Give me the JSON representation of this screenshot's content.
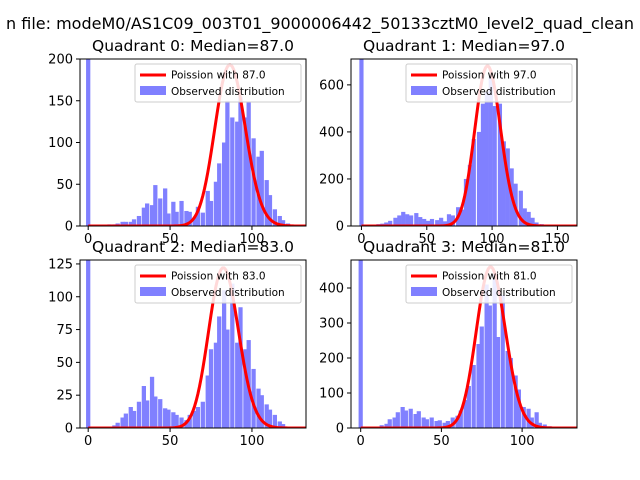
{
  "figure": {
    "suptitle": "n file: modeM0/AS1C09_003T01_9000006442_50133cztM0_level2_quad_clean"
  },
  "colors": {
    "histogram": "#8080ff",
    "poisson_line": "#ff0000",
    "axis": "#000000",
    "legend_border": "#cccccc"
  },
  "chart_data": [
    {
      "type": "bar",
      "quadrant": 0,
      "title": "Quadrant 0: Median=87.0",
      "xlabel": "",
      "ylabel": "",
      "xlim": [
        -5,
        133
      ],
      "ylim": [
        0,
        200
      ],
      "xticks": [
        0,
        50,
        100
      ],
      "xtick_labels": [
        "0",
        "50",
        "100"
      ],
      "yticks": [
        0,
        50,
        100,
        150,
        200
      ],
      "ytick_labels": [
        "0",
        "50",
        "100",
        "150",
        "200"
      ],
      "legend": {
        "position": "top-right",
        "entries": [
          "Poission with 87.0",
          "Observed distribution"
        ]
      },
      "poisson_mean": 87.0,
      "poisson_peak": 193,
      "bin_width": 2.6,
      "bins": [
        {
          "x": 0,
          "v": 200
        },
        {
          "x": 10,
          "v": 1
        },
        {
          "x": 13,
          "v": 2
        },
        {
          "x": 16,
          "v": 2
        },
        {
          "x": 18,
          "v": 3
        },
        {
          "x": 21,
          "v": 5
        },
        {
          "x": 23,
          "v": 5
        },
        {
          "x": 26,
          "v": 5
        },
        {
          "x": 28,
          "v": 8
        },
        {
          "x": 31,
          "v": 12
        },
        {
          "x": 34,
          "v": 22
        },
        {
          "x": 36,
          "v": 27
        },
        {
          "x": 39,
          "v": 25
        },
        {
          "x": 41,
          "v": 49
        },
        {
          "x": 44,
          "v": 33
        },
        {
          "x": 47,
          "v": 45
        },
        {
          "x": 49,
          "v": 15
        },
        {
          "x": 52,
          "v": 29
        },
        {
          "x": 54,
          "v": 17
        },
        {
          "x": 57,
          "v": 30
        },
        {
          "x": 60,
          "v": 18
        },
        {
          "x": 62,
          "v": 17
        },
        {
          "x": 65,
          "v": 10
        },
        {
          "x": 67,
          "v": 23
        },
        {
          "x": 70,
          "v": 16
        },
        {
          "x": 73,
          "v": 42
        },
        {
          "x": 75,
          "v": 30
        },
        {
          "x": 78,
          "v": 53
        },
        {
          "x": 80,
          "v": 75
        },
        {
          "x": 83,
          "v": 100
        },
        {
          "x": 85,
          "v": 150
        },
        {
          "x": 88,
          "v": 130
        },
        {
          "x": 91,
          "v": 125
        },
        {
          "x": 93,
          "v": 155
        },
        {
          "x": 96,
          "v": 130
        },
        {
          "x": 98,
          "v": 148
        },
        {
          "x": 101,
          "v": 105
        },
        {
          "x": 104,
          "v": 83
        },
        {
          "x": 106,
          "v": 90
        },
        {
          "x": 109,
          "v": 55
        },
        {
          "x": 111,
          "v": 37
        },
        {
          "x": 114,
          "v": 20
        },
        {
          "x": 117,
          "v": 12
        },
        {
          "x": 119,
          "v": 7
        },
        {
          "x": 122,
          "v": 3
        },
        {
          "x": 125,
          "v": 1
        }
      ]
    },
    {
      "type": "bar",
      "quadrant": 1,
      "title": "Quadrant 1: Median=97.0",
      "xlabel": "",
      "ylabel": "",
      "xlim": [
        -8,
        165
      ],
      "ylim": [
        0,
        710
      ],
      "xticks": [
        0,
        50,
        100,
        150
      ],
      "xtick_labels": [
        "0",
        "50",
        "100",
        "150"
      ],
      "yticks": [
        0,
        200,
        400,
        600
      ],
      "ytick_labels": [
        "0",
        "200",
        "400",
        "600"
      ],
      "legend": {
        "position": "top-right",
        "entries": [
          "Poission with 97.0",
          "Observed distribution"
        ]
      },
      "poisson_mean": 97.0,
      "poisson_peak": 680,
      "bin_width": 3.2,
      "bins": [
        {
          "x": 0,
          "v": 710
        },
        {
          "x": 10,
          "v": 3
        },
        {
          "x": 13,
          "v": 8
        },
        {
          "x": 16,
          "v": 10
        },
        {
          "x": 19,
          "v": 15
        },
        {
          "x": 22,
          "v": 22
        },
        {
          "x": 26,
          "v": 35
        },
        {
          "x": 29,
          "v": 45
        },
        {
          "x": 32,
          "v": 60
        },
        {
          "x": 35,
          "v": 50
        },
        {
          "x": 38,
          "v": 45
        },
        {
          "x": 42,
          "v": 55
        },
        {
          "x": 45,
          "v": 38
        },
        {
          "x": 48,
          "v": 30
        },
        {
          "x": 51,
          "v": 22
        },
        {
          "x": 54,
          "v": 30
        },
        {
          "x": 58,
          "v": 25
        },
        {
          "x": 61,
          "v": 35
        },
        {
          "x": 64,
          "v": 20
        },
        {
          "x": 67,
          "v": 50
        },
        {
          "x": 70,
          "v": 45
        },
        {
          "x": 74,
          "v": 80
        },
        {
          "x": 77,
          "v": 70
        },
        {
          "x": 80,
          "v": 200
        },
        {
          "x": 83,
          "v": 260
        },
        {
          "x": 86,
          "v": 370
        },
        {
          "x": 90,
          "v": 400
        },
        {
          "x": 93,
          "v": 520
        },
        {
          "x": 96,
          "v": 570
        },
        {
          "x": 99,
          "v": 640
        },
        {
          "x": 102,
          "v": 510
        },
        {
          "x": 106,
          "v": 520
        },
        {
          "x": 109,
          "v": 360
        },
        {
          "x": 112,
          "v": 330
        },
        {
          "x": 115,
          "v": 245
        },
        {
          "x": 118,
          "v": 180
        },
        {
          "x": 122,
          "v": 150
        },
        {
          "x": 125,
          "v": 75
        },
        {
          "x": 128,
          "v": 60
        },
        {
          "x": 131,
          "v": 35
        },
        {
          "x": 134,
          "v": 15
        },
        {
          "x": 138,
          "v": 8
        },
        {
          "x": 141,
          "v": 5
        },
        {
          "x": 144,
          "v": 3
        },
        {
          "x": 150,
          "v": 2
        }
      ]
    },
    {
      "type": "bar",
      "quadrant": 2,
      "title": "Quadrant 2: Median=83.0",
      "xlabel": "",
      "ylabel": "",
      "xlim": [
        -5,
        133
      ],
      "ylim": [
        0,
        128
      ],
      "xticks": [
        0,
        50,
        100
      ],
      "xtick_labels": [
        "0",
        "50",
        "100"
      ],
      "yticks": [
        0,
        25,
        50,
        75,
        100,
        125
      ],
      "ytick_labels": [
        "0",
        "25",
        "50",
        "75",
        "100",
        "125"
      ],
      "legend": {
        "position": "top-right",
        "entries": [
          "Poission with 83.0",
          "Observed distribution"
        ]
      },
      "poisson_mean": 83.0,
      "poisson_peak": 122,
      "bin_width": 2.6,
      "bins": [
        {
          "x": 0,
          "v": 128
        },
        {
          "x": 13,
          "v": 1
        },
        {
          "x": 16,
          "v": 2
        },
        {
          "x": 18,
          "v": 4
        },
        {
          "x": 21,
          "v": 8
        },
        {
          "x": 23,
          "v": 11
        },
        {
          "x": 26,
          "v": 16
        },
        {
          "x": 28,
          "v": 13
        },
        {
          "x": 31,
          "v": 20
        },
        {
          "x": 34,
          "v": 32
        },
        {
          "x": 36,
          "v": 21
        },
        {
          "x": 39,
          "v": 39
        },
        {
          "x": 41,
          "v": 24
        },
        {
          "x": 44,
          "v": 22
        },
        {
          "x": 47,
          "v": 15
        },
        {
          "x": 49,
          "v": 14
        },
        {
          "x": 52,
          "v": 12
        },
        {
          "x": 54,
          "v": 10
        },
        {
          "x": 57,
          "v": 8
        },
        {
          "x": 60,
          "v": 6
        },
        {
          "x": 62,
          "v": 10
        },
        {
          "x": 65,
          "v": 13
        },
        {
          "x": 67,
          "v": 16
        },
        {
          "x": 70,
          "v": 20
        },
        {
          "x": 73,
          "v": 40
        },
        {
          "x": 75,
          "v": 60
        },
        {
          "x": 78,
          "v": 65
        },
        {
          "x": 80,
          "v": 85
        },
        {
          "x": 83,
          "v": 105
        },
        {
          "x": 85,
          "v": 75
        },
        {
          "x": 88,
          "v": 110
        },
        {
          "x": 91,
          "v": 65
        },
        {
          "x": 93,
          "v": 92
        },
        {
          "x": 96,
          "v": 60
        },
        {
          "x": 98,
          "v": 67
        },
        {
          "x": 101,
          "v": 45
        },
        {
          "x": 104,
          "v": 30
        },
        {
          "x": 106,
          "v": 25
        },
        {
          "x": 109,
          "v": 18
        },
        {
          "x": 111,
          "v": 14
        },
        {
          "x": 114,
          "v": 10
        },
        {
          "x": 117,
          "v": 5
        },
        {
          "x": 119,
          "v": 3
        },
        {
          "x": 122,
          "v": 1
        }
      ]
    },
    {
      "type": "bar",
      "quadrant": 3,
      "title": "Quadrant 3: Median=81.0",
      "xlabel": "",
      "ylabel": "",
      "xlim": [
        -6,
        134
      ],
      "ylim": [
        0,
        480
      ],
      "xticks": [
        0,
        50,
        100
      ],
      "xtick_labels": [
        "0",
        "50",
        "100"
      ],
      "yticks": [
        0,
        100,
        200,
        300,
        400
      ],
      "ytick_labels": [
        "0",
        "100",
        "200",
        "300",
        "400"
      ],
      "legend": {
        "position": "top-right",
        "entries": [
          "Poission with 81.0",
          "Observed distribution"
        ]
      },
      "poisson_mean": 81.0,
      "poisson_peak": 460,
      "bin_width": 2.6,
      "bins": [
        {
          "x": 0,
          "v": 480
        },
        {
          "x": 10,
          "v": 3
        },
        {
          "x": 13,
          "v": 8
        },
        {
          "x": 16,
          "v": 12
        },
        {
          "x": 18,
          "v": 25
        },
        {
          "x": 21,
          "v": 30
        },
        {
          "x": 23,
          "v": 45
        },
        {
          "x": 26,
          "v": 60
        },
        {
          "x": 28,
          "v": 50
        },
        {
          "x": 31,
          "v": 55
        },
        {
          "x": 34,
          "v": 40
        },
        {
          "x": 36,
          "v": 48
        },
        {
          "x": 39,
          "v": 30
        },
        {
          "x": 41,
          "v": 25
        },
        {
          "x": 44,
          "v": 30
        },
        {
          "x": 47,
          "v": 20
        },
        {
          "x": 49,
          "v": 22
        },
        {
          "x": 52,
          "v": 15
        },
        {
          "x": 54,
          "v": 20
        },
        {
          "x": 57,
          "v": 30
        },
        {
          "x": 60,
          "v": 35
        },
        {
          "x": 62,
          "v": 50
        },
        {
          "x": 65,
          "v": 80
        },
        {
          "x": 67,
          "v": 120
        },
        {
          "x": 70,
          "v": 180
        },
        {
          "x": 73,
          "v": 240
        },
        {
          "x": 75,
          "v": 290
        },
        {
          "x": 78,
          "v": 410
        },
        {
          "x": 80,
          "v": 350
        },
        {
          "x": 83,
          "v": 440
        },
        {
          "x": 85,
          "v": 260
        },
        {
          "x": 88,
          "v": 380
        },
        {
          "x": 91,
          "v": 220
        },
        {
          "x": 93,
          "v": 200
        },
        {
          "x": 96,
          "v": 150
        },
        {
          "x": 98,
          "v": 110
        },
        {
          "x": 101,
          "v": 60
        },
        {
          "x": 104,
          "v": 55
        },
        {
          "x": 106,
          "v": 30
        },
        {
          "x": 109,
          "v": 45
        },
        {
          "x": 111,
          "v": 15
        },
        {
          "x": 114,
          "v": 10
        },
        {
          "x": 117,
          "v": 5
        },
        {
          "x": 119,
          "v": 3
        }
      ]
    }
  ]
}
